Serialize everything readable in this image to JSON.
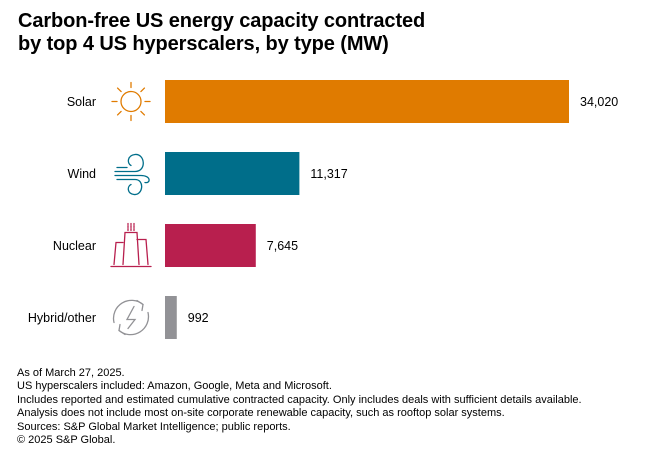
{
  "chart_data": {
    "type": "bar",
    "orientation": "horizontal",
    "title": "Carbon-free US energy capacity contracted by top 4 US hyperscalers, by type (MW)",
    "title_lines": [
      "Carbon-free US energy capacity contracted",
      "by top 4 US hyperscalers, by type (MW)"
    ],
    "xlabel": "",
    "ylabel": "",
    "unit": "MW",
    "grid": false,
    "legend": "none",
    "xlim": [
      0,
      34020
    ],
    "categories": [
      "Solar",
      "Wind",
      "Nuclear",
      "Hybrid/other"
    ],
    "values": [
      34020,
      11317,
      7645,
      992
    ],
    "value_labels": [
      "34,020",
      "11,317",
      "7,645",
      "992"
    ],
    "colors": [
      "#e07b00",
      "#006e8a",
      "#b81f4e",
      "#929296"
    ],
    "icons": [
      "sun-icon",
      "wind-icon",
      "nuclear-plant-icon",
      "renewable-cycle-icon"
    ]
  },
  "footnotes": [
    "As of March 27, 2025.",
    "US hyperscalers included: Amazon, Google, Meta and Microsoft.",
    "Includes reported and estimated cumulative contracted capacity. Only includes deals with sufficient details available.",
    "Analysis does not include most on-site corporate renewable capacity, such as rooftop solar systems.",
    "Sources: S&P Global Market Intelligence; public reports.",
    "© 2025 S&P Global."
  ]
}
